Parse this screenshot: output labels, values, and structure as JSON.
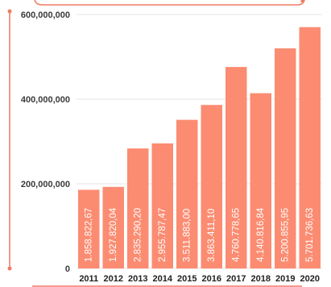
{
  "colors": {
    "bar": "#fb8c72",
    "frame": "#f07a62",
    "label": "#ffffff"
  },
  "chart_data": {
    "type": "bar",
    "categories": [
      "2011",
      "2012",
      "2013",
      "2014",
      "2015",
      "2016",
      "2017",
      "2018",
      "2019",
      "2020"
    ],
    "values": [
      1858822.67,
      1927820.04,
      2835290.2,
      2955787.47,
      3511883.0,
      3863411.1,
      4760778.65,
      4140816.84,
      5200855.95,
      5701736.63
    ],
    "data_labels": [
      "1.858.822,67",
      "1.927.820,04",
      "2.835.290,20",
      "2.955.787,47",
      "3.511.883,00",
      "3.863.411,10",
      "4.760.778,65",
      "4.140.816,84",
      "5.200.855,95",
      "5.701.736,63"
    ],
    "ylim": [
      0,
      600000000
    ],
    "yticks": [
      0,
      200000000,
      400000000,
      600000000
    ],
    "ytick_labels": [
      "0",
      "200,000,000",
      "400,000,000",
      "600,000,000"
    ],
    "grid": true,
    "title": "",
    "xlabel": "",
    "ylabel": ""
  }
}
